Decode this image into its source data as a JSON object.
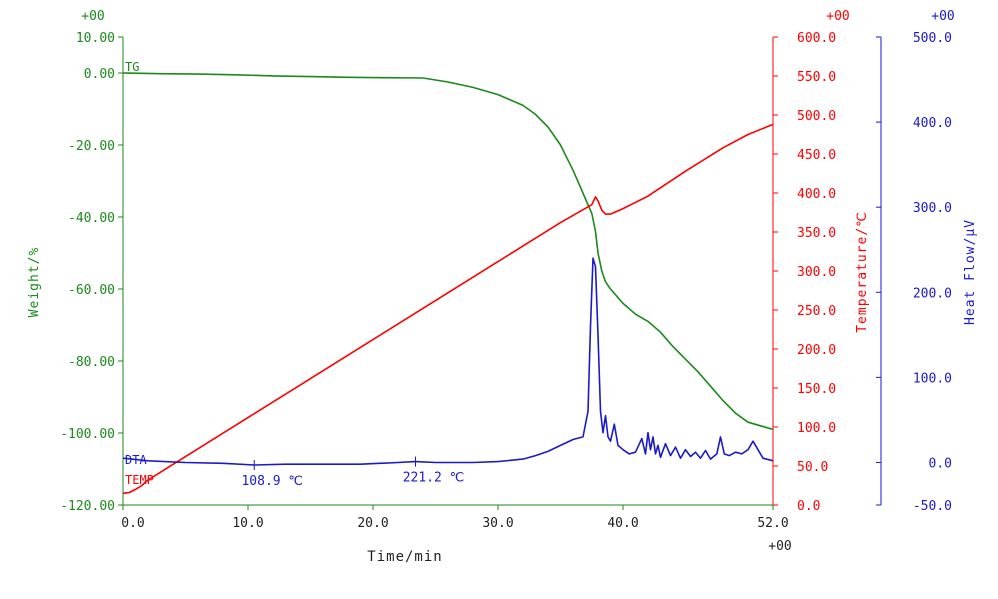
{
  "chart_data": {
    "type": "line",
    "xlabel": "Time/min",
    "xlim": [
      0,
      52
    ],
    "x_ticks": [
      "0.0",
      "10.0",
      "20.0",
      "30.0",
      "40.0",
      "52.0"
    ],
    "x_tick_values": [
      0,
      10,
      20,
      30,
      40,
      52
    ],
    "x_exponent": "+00",
    "axes": {
      "weight": {
        "label": "Weight/%",
        "color": "#1a8a1a",
        "exponent": "+00",
        "ylim": [
          -120,
          10
        ],
        "ticks": [
          "10.00",
          "0.00",
          "-20.00",
          "-40.00",
          "-60.00",
          "-80.00",
          "-100.00",
          "-120.00"
        ],
        "tick_values": [
          10,
          0,
          -20,
          -40,
          -60,
          -80,
          -100,
          -120
        ]
      },
      "temperature": {
        "label": "Temperature/℃",
        "color": "#ff0000",
        "exponent": "+00",
        "ylim": [
          0,
          600
        ],
        "ticks": [
          "600.0",
          "550.0",
          "500.0",
          "450.0",
          "400.0",
          "350.0",
          "300.0",
          "250.0",
          "200.0",
          "150.0",
          "100.0",
          "50.0",
          "0.0"
        ],
        "tick_values": [
          600,
          550,
          500,
          450,
          400,
          350,
          300,
          250,
          200,
          150,
          100,
          50,
          0
        ]
      },
      "heat_flow": {
        "label": "Heat Flow/μV",
        "color": "#1a1acc",
        "exponent": "+00",
        "ylim": [
          -50,
          500
        ],
        "ticks": [
          "500.0",
          "400.0",
          "300.0",
          "200.0",
          "100.0",
          "0.0",
          "-50.0"
        ],
        "tick_values": [
          500,
          400,
          300,
          200,
          100,
          0,
          -50
        ]
      }
    },
    "series": [
      {
        "name": "TG",
        "axis": "weight",
        "color": "#1a8a1a",
        "x": [
          0,
          3,
          6,
          9,
          12,
          15,
          18,
          21,
          24,
          26,
          28,
          30,
          31,
          32,
          33,
          34,
          35,
          36,
          36.5,
          37,
          37.5,
          37.8,
          38.0,
          38.3,
          38.6,
          39,
          39.5,
          40,
          41,
          42,
          43,
          44,
          45,
          46,
          47,
          48,
          49,
          50,
          51,
          52
        ],
        "y": [
          0,
          -0.2,
          -0.3,
          -0.5,
          -0.8,
          -1.0,
          -1.2,
          -1.3,
          -1.4,
          -2.5,
          -4.0,
          -6.0,
          -7.5,
          -9.0,
          -11.5,
          -15.0,
          -20.0,
          -27.0,
          -31.0,
          -35.0,
          -39.0,
          -44.0,
          -50.0,
          -55.0,
          -58.0,
          -60.0,
          -62.0,
          -64.0,
          -67.0,
          -69.0,
          -72.0,
          -76.0,
          -79.5,
          -83.0,
          -87.0,
          -91.0,
          -94.5,
          -97.0,
          -98.0,
          -99.0
        ]
      },
      {
        "name": "TEMP",
        "axis": "temperature",
        "color": "#ff0000",
        "x": [
          0,
          0.5,
          1,
          1.5,
          2,
          3,
          5,
          10,
          15,
          20,
          25,
          30,
          35,
          37.5,
          37.8,
          38.0,
          38.3,
          38.6,
          39.0,
          40,
          42,
          45,
          48,
          50,
          52
        ],
        "y": [
          15,
          16,
          20,
          25,
          32,
          42,
          62,
          112,
          162,
          212,
          262,
          312,
          362,
          385,
          395,
          390,
          378,
          373,
          373,
          380,
          396,
          428,
          458,
          475,
          488
        ]
      },
      {
        "name": "DTA",
        "axis": "heat_flow",
        "color": "#1a1acc",
        "x": [
          0,
          2,
          5,
          8,
          10.5,
          13,
          16,
          19,
          22,
          23.4,
          25,
          28,
          30,
          32,
          33,
          34,
          35,
          36,
          36.8,
          37.2,
          37.4,
          37.6,
          37.8,
          38.0,
          38.2,
          38.4,
          38.6,
          38.8,
          39.0,
          39.3,
          39.6,
          40,
          40.5,
          41,
          41.5,
          41.8,
          42.0,
          42.2,
          42.4,
          42.6,
          42.8,
          43.0,
          43.4,
          43.8,
          44.2,
          44.6,
          45.0,
          45.4,
          45.8,
          46.2,
          46.6,
          47.0,
          47.5,
          47.8,
          48.1,
          48.5,
          49,
          49.5,
          50,
          50.4,
          50.8,
          51.2,
          52
        ],
        "y": [
          5,
          2,
          0,
          -1,
          -3,
          -2,
          -2,
          -2,
          0,
          1,
          0,
          0,
          1,
          4,
          8,
          13,
          20,
          27,
          30,
          60,
          160,
          240,
          230,
          150,
          60,
          35,
          55,
          30,
          25,
          45,
          20,
          15,
          10,
          12,
          28,
          10,
          35,
          15,
          30,
          10,
          20,
          6,
          22,
          8,
          18,
          5,
          15,
          7,
          12,
          5,
          14,
          4,
          10,
          30,
          10,
          8,
          12,
          10,
          15,
          25,
          15,
          5,
          2
        ]
      }
    ],
    "annotations": [
      {
        "text": "108.9 ℃",
        "x": 10.5,
        "axis": "heat_flow",
        "y": -3,
        "color": "#1a1acc"
      },
      {
        "text": "221.2 ℃",
        "x": 23.4,
        "axis": "heat_flow",
        "y": 1,
        "color": "#1a1acc"
      }
    ],
    "legend_placement": "left, inline labels near curves",
    "grid": false
  }
}
